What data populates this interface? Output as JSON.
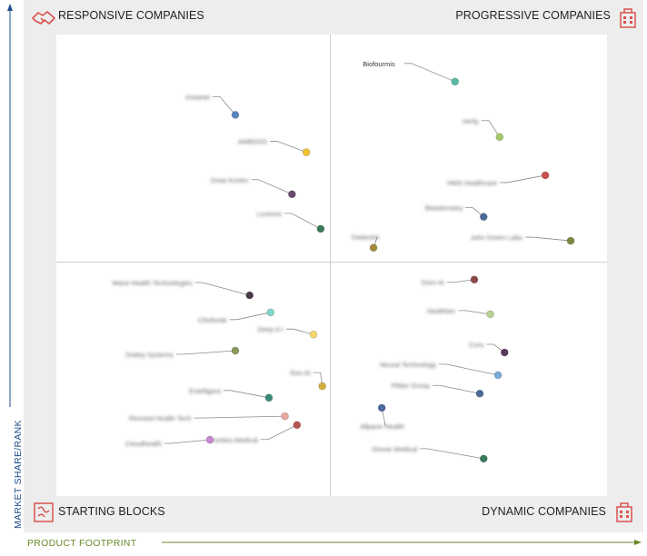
{
  "quadrants": {
    "top_left": "RESPONSIVE COMPANIES",
    "top_right": "PROGRESSIVE COMPANIES",
    "bottom_left": "STARTING BLOCKS",
    "bottom_right": "DYNAMIC COMPANIES"
  },
  "axes": {
    "y_label": "MARKET SHARE/RANK",
    "x_label": "PRODUCT FOOTPRINT"
  },
  "colors": {
    "y_axis": "#1f4e8c",
    "x_axis": "#6a8a28",
    "quadrant_icon": "#d9534f"
  },
  "icons": {
    "top_left": "handshake-icon",
    "top_right": "building-icon",
    "bottom_left": "puzzle-icon",
    "bottom_right": "building-icon"
  },
  "chart_data": {
    "type": "scatter",
    "xlabel": "PRODUCT FOOTPRINT",
    "ylabel": "MARKET SHARE/RANK",
    "xlim": [
      0,
      100
    ],
    "ylim": [
      0,
      100
    ],
    "points": [
      {
        "label": "Biofourmis",
        "x": 72.4,
        "y": 89.8,
        "color": "#5ab8a4",
        "legible": true
      },
      {
        "label": "Verily",
        "x": 80.5,
        "y": 77.8,
        "color": "#a6c96a",
        "legible": false
      },
      {
        "label": "HMS Healthcare",
        "x": 88.8,
        "y": 69.5,
        "color": "#c9504f",
        "legible": false
      },
      {
        "label": "Biotelemetry",
        "x": 77.6,
        "y": 60.5,
        "color": "#4a6a9a",
        "legible": false
      },
      {
        "label": "John Green Labs",
        "x": 93.4,
        "y": 55.3,
        "color": "#7a8a44",
        "legible": false
      },
      {
        "label": "Datacare",
        "x": 57.6,
        "y": 53.8,
        "color": "#a38a3a",
        "legible": false
      },
      {
        "label": "Instanet",
        "x": 32.5,
        "y": 82.6,
        "color": "#5a86c0",
        "legible": false
      },
      {
        "label": "AMBOSS",
        "x": 45.4,
        "y": 74.5,
        "color": "#f1c232",
        "legible": false
      },
      {
        "label": "Deep Kortex",
        "x": 42.8,
        "y": 65.4,
        "color": "#6a4a6a",
        "legible": false
      },
      {
        "label": "Lexisnix",
        "x": 48.0,
        "y": 57.9,
        "color": "#3a7a5a",
        "legible": false
      },
      {
        "label": "Wave Health Technologies",
        "x": 35.1,
        "y": 43.5,
        "color": "#4a3a4a",
        "legible": false
      },
      {
        "label": "Cliniforde",
        "x": 38.9,
        "y": 39.8,
        "color": "#7fd6c8",
        "legible": false
      },
      {
        "label": "Deep A.I",
        "x": 46.7,
        "y": 35.0,
        "color": "#f5d76e",
        "legible": false
      },
      {
        "label": "Dottey Systems",
        "x": 32.5,
        "y": 31.5,
        "color": "#8a9a5a",
        "legible": false
      },
      {
        "label": "Eon AI",
        "x": 48.3,
        "y": 23.8,
        "color": "#d4b040",
        "legible": false
      },
      {
        "label": "Entelligent",
        "x": 38.6,
        "y": 21.3,
        "color": "#3a8a7a",
        "legible": false
      },
      {
        "label": "Revised Health Tech",
        "x": 41.5,
        "y": 17.3,
        "color": "#e8a8a0",
        "legible": false
      },
      {
        "label": "Fronties Medical",
        "x": 43.7,
        "y": 15.4,
        "color": "#b85450",
        "legible": false
      },
      {
        "label": "Cloudhealth",
        "x": 27.9,
        "y": 12.2,
        "color": "#c888d0",
        "legible": false
      },
      {
        "label": "Oren AI",
        "x": 75.9,
        "y": 46.9,
        "color": "#8a4a4a",
        "legible": false
      },
      {
        "label": "Healthtec",
        "x": 78.8,
        "y": 39.4,
        "color": "#b8d090",
        "legible": false
      },
      {
        "label": "Curo",
        "x": 81.4,
        "y": 31.1,
        "color": "#5a3a5a",
        "legible": false
      },
      {
        "label": "Neural Technology",
        "x": 80.2,
        "y": 26.2,
        "color": "#7aaad8",
        "legible": false
      },
      {
        "label": "Pfitter Group",
        "x": 76.9,
        "y": 22.2,
        "color": "#4a6a9a",
        "legible": false
      },
      {
        "label": "Allpane Health",
        "x": 59.1,
        "y": 19.1,
        "color": "#4a6a9a",
        "legible": false
      },
      {
        "label": "Orexie Medical",
        "x": 77.6,
        "y": 8.1,
        "color": "#3a7a5a",
        "legible": false
      }
    ]
  }
}
